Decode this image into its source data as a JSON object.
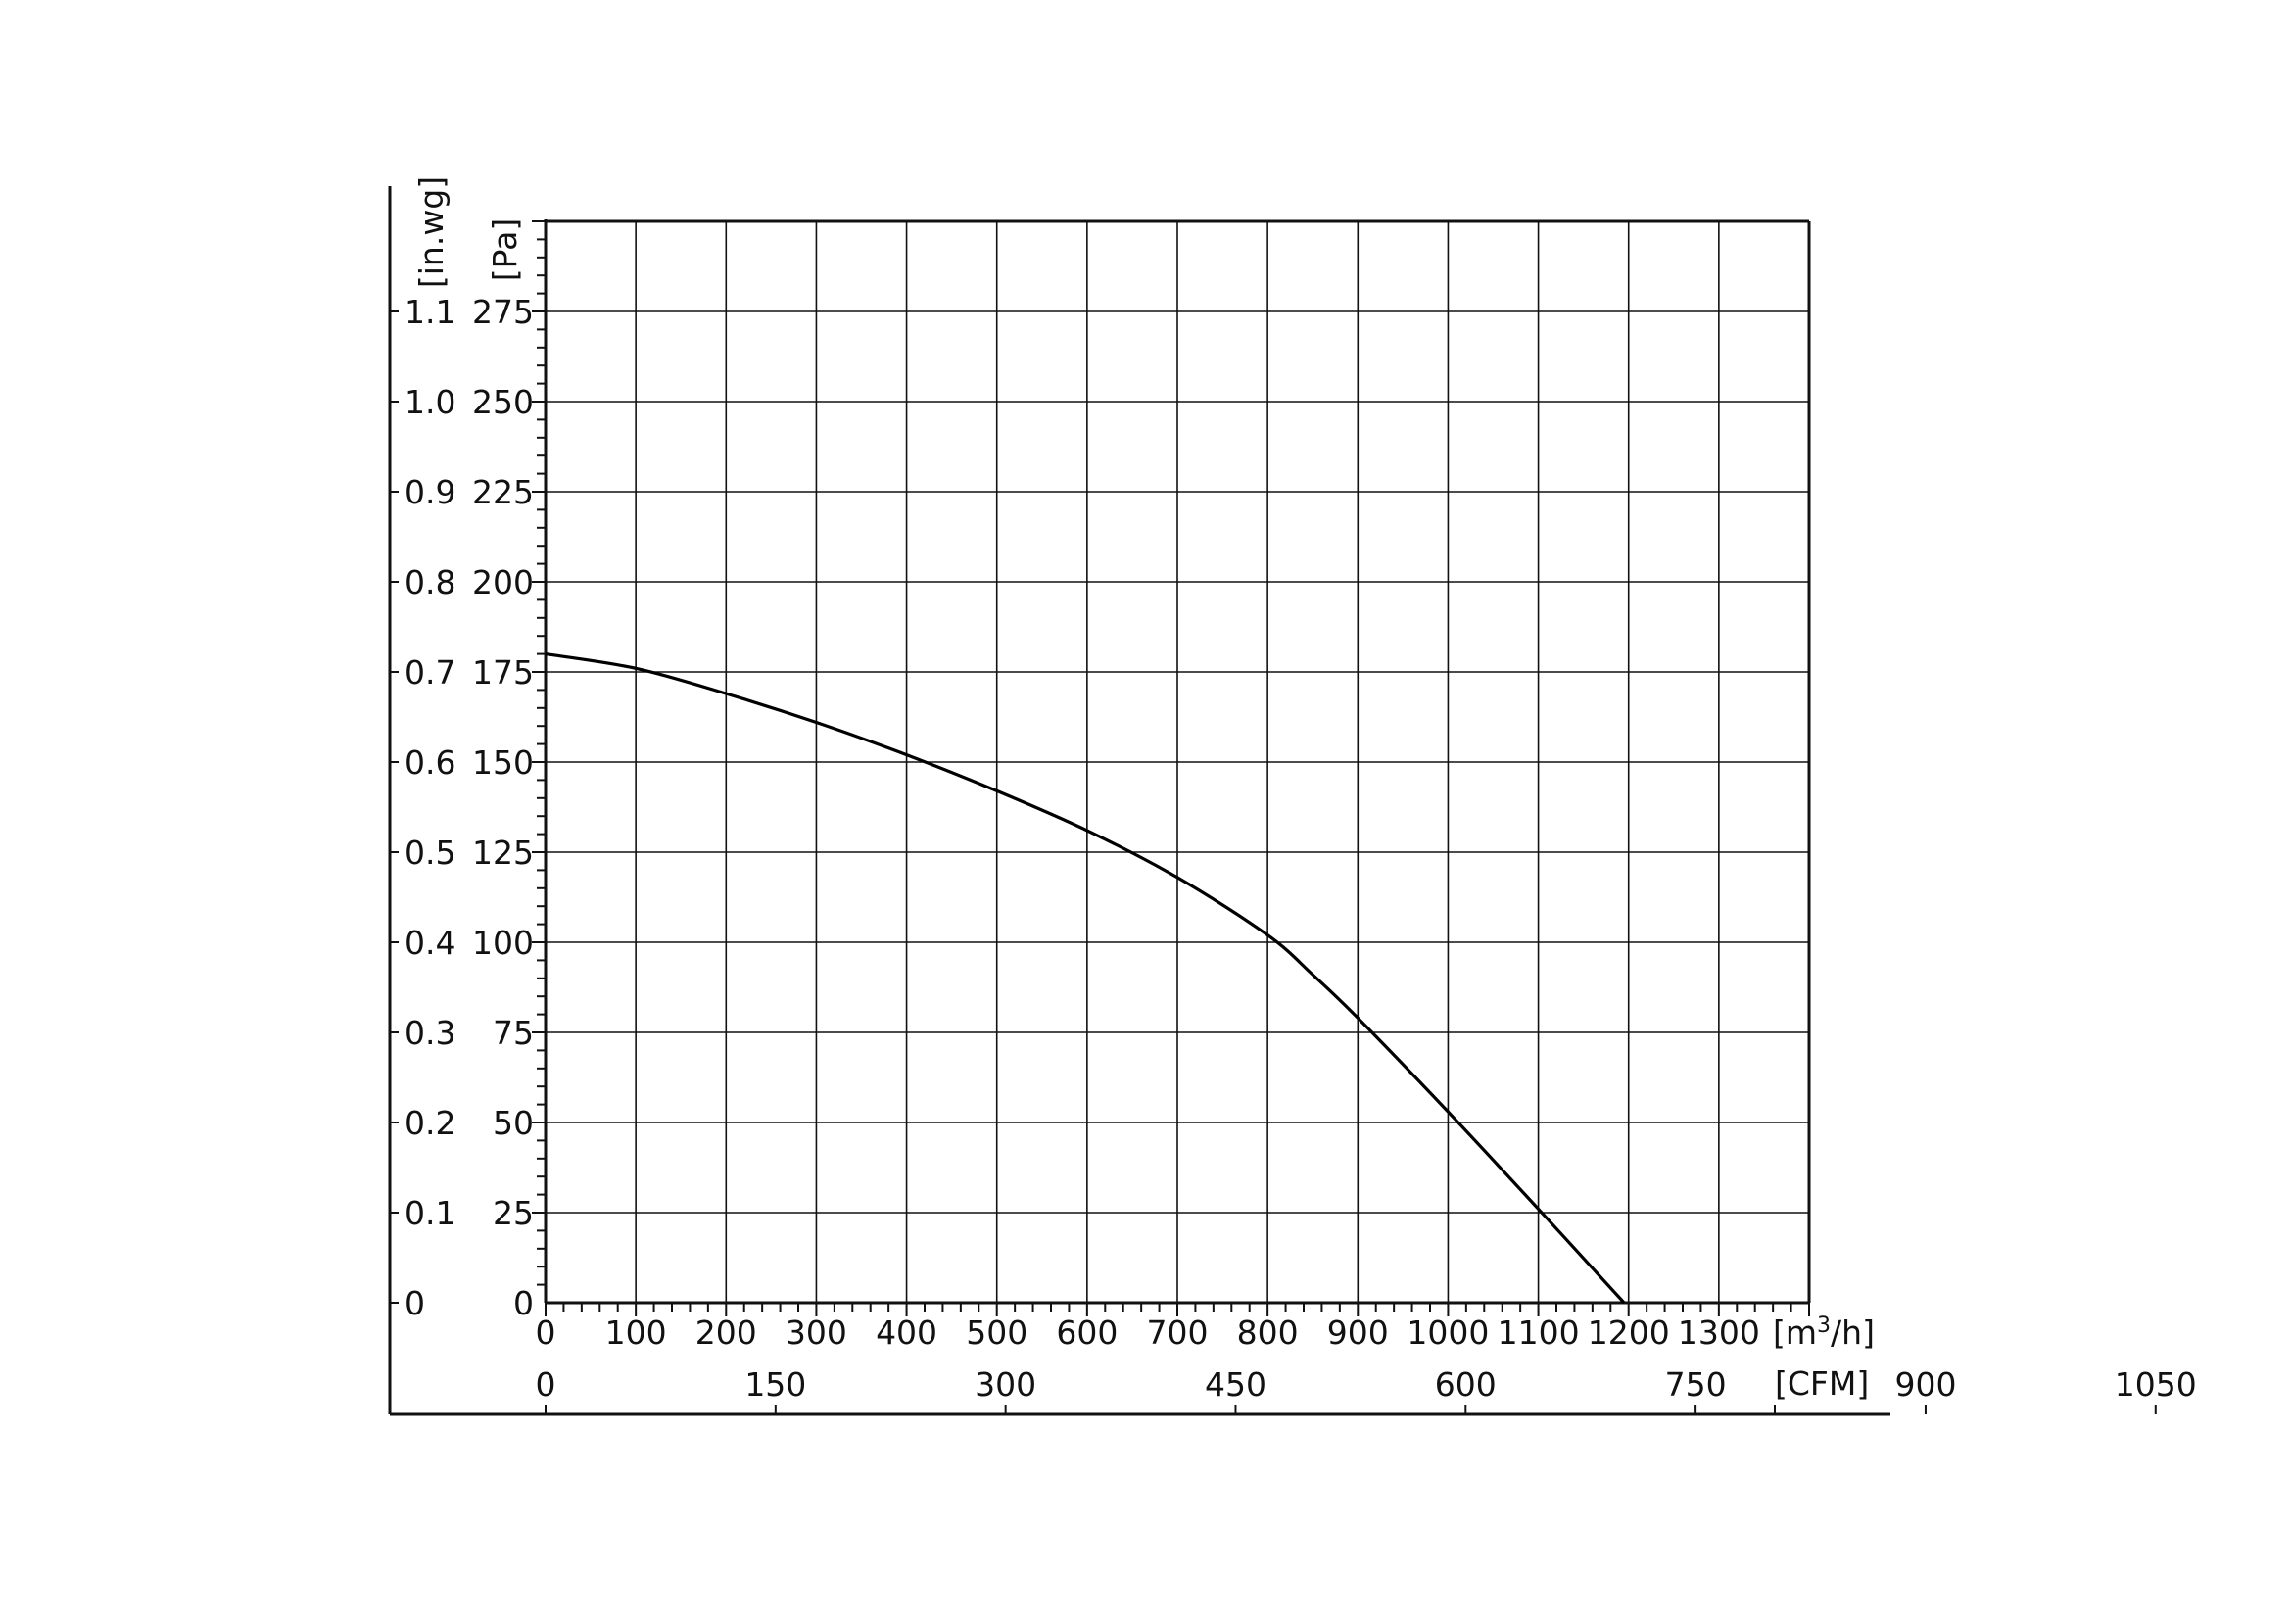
{
  "chart_data": {
    "type": "line",
    "title": "",
    "x_primary": {
      "unit_label": "[m³/h]",
      "ticks": [
        0,
        100,
        200,
        300,
        400,
        500,
        600,
        700,
        800,
        900,
        1000,
        1100,
        1200,
        1300
      ],
      "range": [
        0,
        1400
      ]
    },
    "x_secondary": {
      "unit_label": "[CFM]",
      "ticks": [
        0,
        150,
        300,
        450,
        600,
        750,
        900,
        1050
      ]
    },
    "y_primary": {
      "unit_label": "[Pa]",
      "ticks": [
        0,
        25,
        50,
        75,
        100,
        125,
        150,
        175,
        200,
        225,
        250,
        275
      ],
      "range": [
        0,
        300
      ]
    },
    "y_secondary": {
      "unit_label": "[in.wg]",
      "ticks": [
        "0",
        "0.1",
        "0.2",
        "0.3",
        "0.4",
        "0.5",
        "0.6",
        "0.7",
        "0.8",
        "0.9",
        "1.0",
        "1.1"
      ]
    },
    "grid": true,
    "series": [
      {
        "x": [
          0,
          100,
          200,
          300,
          400,
          500,
          600,
          700,
          800,
          850,
          900,
          1000,
          1100,
          1195
        ],
        "y": [
          180,
          176,
          169,
          161,
          152,
          142,
          131,
          118,
          102,
          91,
          79,
          53,
          26,
          0
        ]
      }
    ]
  }
}
